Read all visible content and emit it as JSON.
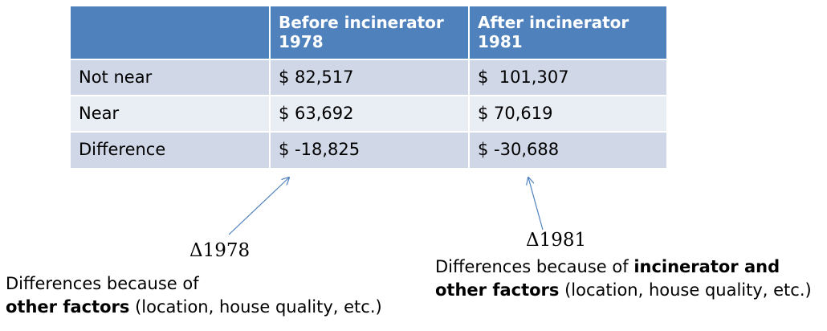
{
  "table": {
    "headers": [
      "",
      "Before incinerator 1978",
      "After incinerator 1981"
    ],
    "rows": [
      [
        "Not near",
        "$ 82,517",
        "$  101,307"
      ],
      [
        "Near",
        "$ 63,692",
        "$ 70,619"
      ],
      [
        "Difference",
        "$ -18,825",
        "$ -30,688"
      ]
    ]
  },
  "annotations": {
    "delta_1978": "Δ1978",
    "delta_1981": "Δ1981",
    "left_note": {
      "line1": "Differences because of",
      "line2_bold": "other factors",
      "line2_rest": " (location, house quality, etc.)"
    },
    "right_note": {
      "line1_plain": "Differences because of ",
      "line1_bold": "incinerator and",
      "line2_bold": "other factors",
      "line2_rest": " (location, house quality, etc.)"
    }
  },
  "colors": {
    "header_bg": "#4f81bd",
    "row_odd_bg": "#d0d8e8",
    "row_even_bg": "#e9edf4",
    "arrow": "#4f81bd"
  }
}
